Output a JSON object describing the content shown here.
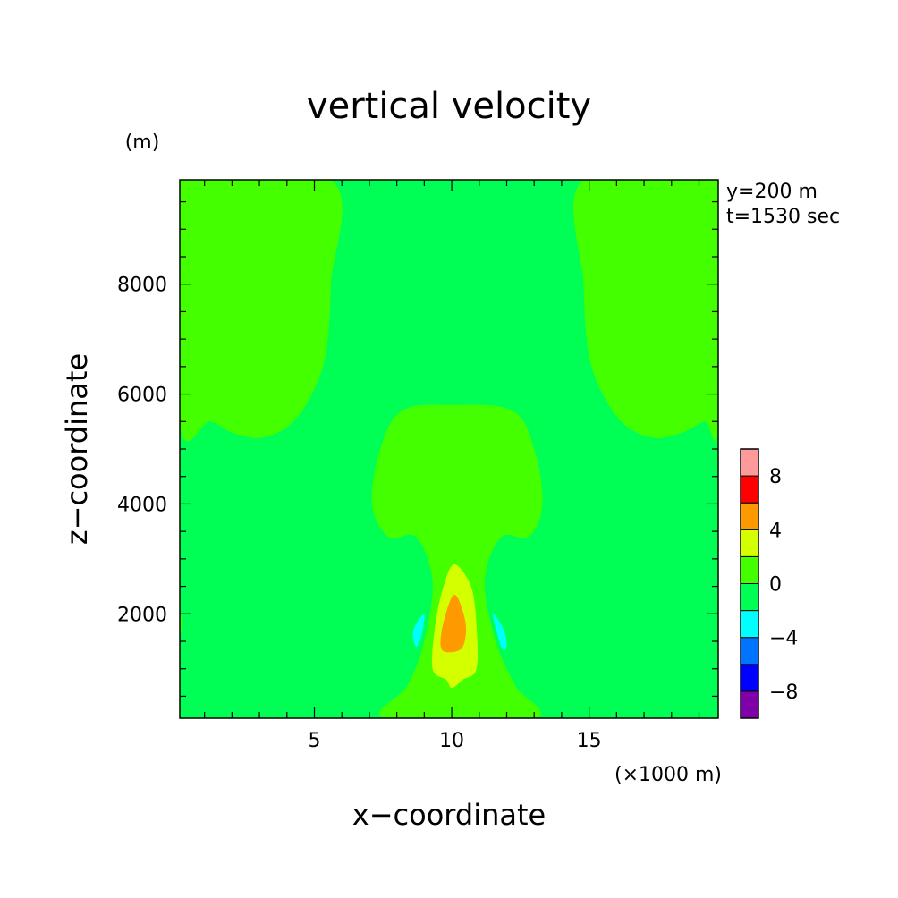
{
  "chart_data": {
    "type": "contour",
    "title": "vertical velocity",
    "xlabel": "x−coordinate",
    "ylabel": "z−coordinate",
    "x_unit": "(×1000 m)",
    "y_unit": "(m)",
    "info_lines": [
      "y=200 m",
      "t=1530 sec"
    ],
    "xlim": [
      0.1,
      19.7
    ],
    "ylim": [
      100,
      9900
    ],
    "xticks": [
      5,
      10,
      15
    ],
    "yticks": [
      2000,
      4000,
      6000,
      8000
    ],
    "colorbar": {
      "levels": [
        -10,
        -8,
        -6,
        -4,
        -2,
        0,
        2,
        4,
        6,
        8,
        10
      ],
      "colors": [
        "#7f00a8",
        "#0000ff",
        "#0073ff",
        "#00ffff",
        "#00ff55",
        "#44ff00",
        "#d4ff00",
        "#ff9900",
        "#ff0000",
        "#ff9a9a"
      ],
      "tick_labels": [
        "8",
        "4",
        "0",
        "−4",
        "−8"
      ]
    },
    "regions": [
      {
        "name": "background",
        "range": [
          -2,
          0
        ],
        "color": "#00ff55"
      },
      {
        "name": "updraft-upper-left",
        "range": [
          0,
          2
        ],
        "color": "#44ff00",
        "outline": [
          [
            0.1,
            9900
          ],
          [
            5.6,
            9900
          ],
          [
            5.6,
            8000
          ],
          [
            5.4,
            6700
          ],
          [
            4.8,
            5900
          ],
          [
            4.0,
            5400
          ],
          [
            3.0,
            5200
          ],
          [
            2.0,
            5300
          ],
          [
            1.2,
            5500
          ],
          [
            0.1,
            5450
          ]
        ]
      },
      {
        "name": "updraft-upper-right",
        "range": [
          0,
          2
        ],
        "color": "#44ff00",
        "outline": [
          [
            19.7,
            9900
          ],
          [
            14.8,
            9900
          ],
          [
            14.8,
            8000
          ],
          [
            15.0,
            6700
          ],
          [
            15.6,
            5900
          ],
          [
            16.4,
            5400
          ],
          [
            17.4,
            5200
          ],
          [
            18.4,
            5300
          ],
          [
            19.2,
            5500
          ],
          [
            19.7,
            5450
          ]
        ]
      },
      {
        "name": "updraft-mushroom",
        "range": [
          0,
          2
        ],
        "color": "#44ff00",
        "outline": [
          [
            10.0,
            5800
          ],
          [
            8.2,
            5700
          ],
          [
            7.4,
            5000
          ],
          [
            7.1,
            4000
          ],
          [
            7.7,
            3400
          ],
          [
            8.7,
            3400
          ],
          [
            9.3,
            2600
          ],
          [
            9.0,
            1500
          ],
          [
            8.4,
            700
          ],
          [
            7.6,
            100
          ],
          [
            13.0,
            100
          ],
          [
            12.3,
            700
          ],
          [
            11.6,
            1500
          ],
          [
            11.2,
            2600
          ],
          [
            11.8,
            3400
          ],
          [
            12.8,
            3400
          ],
          [
            13.3,
            4000
          ],
          [
            13.0,
            5000
          ],
          [
            12.2,
            5700
          ]
        ]
      },
      {
        "name": "updraft-lower-left-edge",
        "range": [
          0,
          2
        ],
        "color": "#44ff00",
        "outline": [
          [
            0.1,
            2050
          ],
          [
            0.2,
            1850
          ],
          [
            0.1,
            1650
          ]
        ]
      },
      {
        "name": "core-yellow",
        "range": [
          2,
          4
        ],
        "color": "#d4ff00",
        "outline": [
          [
            10.1,
            2900
          ],
          [
            9.7,
            2500
          ],
          [
            9.4,
            1800
          ],
          [
            9.3,
            1000
          ],
          [
            9.8,
            800
          ],
          [
            10.0,
            650
          ],
          [
            10.4,
            800
          ],
          [
            10.9,
            1000
          ],
          [
            10.9,
            1800
          ],
          [
            10.7,
            2500
          ]
        ]
      },
      {
        "name": "core-orange",
        "range": [
          4,
          6
        ],
        "color": "#ff9900",
        "outline": [
          [
            10.1,
            2350
          ],
          [
            9.7,
            1850
          ],
          [
            9.6,
            1400
          ],
          [
            9.9,
            1300
          ],
          [
            10.4,
            1400
          ],
          [
            10.5,
            1850
          ]
        ]
      },
      {
        "name": "downdraft-left",
        "range": [
          -4,
          -2
        ],
        "color": "#00ffff",
        "outline": [
          [
            8.6,
            1700
          ],
          [
            9.0,
            2000
          ],
          [
            8.9,
            1600
          ],
          [
            8.7,
            1400
          ]
        ]
      },
      {
        "name": "downdraft-right",
        "range": [
          -4,
          -2
        ],
        "color": "#00ffff",
        "outline": [
          [
            11.5,
            2000
          ],
          [
            11.9,
            1700
          ],
          [
            12.0,
            1400
          ],
          [
            11.8,
            1400
          ]
        ]
      }
    ]
  }
}
